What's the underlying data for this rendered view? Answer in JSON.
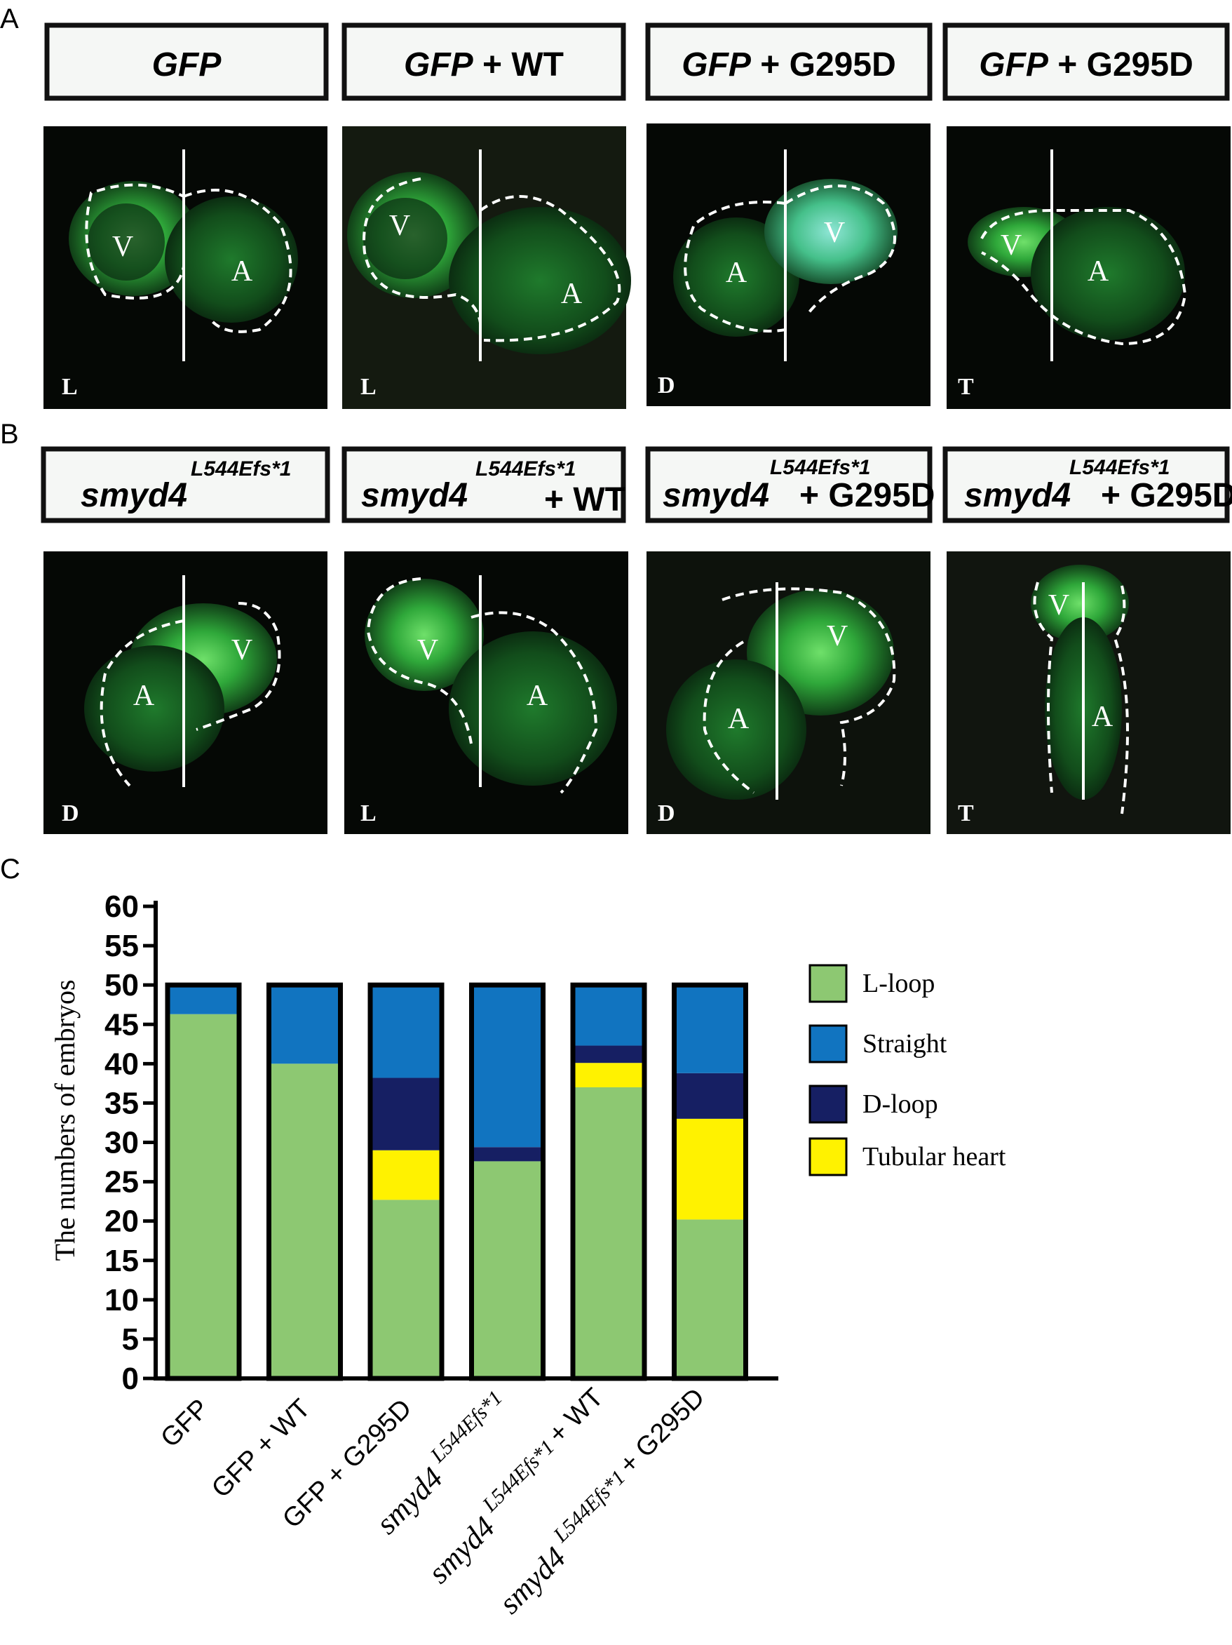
{
  "panel_letters": {
    "a": "A",
    "b": "B",
    "c": "C"
  },
  "row_a": {
    "headers": [
      {
        "main": "GFP",
        "suffix": ""
      },
      {
        "main": "GFP",
        "suffix": " + WT"
      },
      {
        "main": "GFP",
        "suffix": " + G295D"
      },
      {
        "main": "GFP",
        "suffix": " + G295D"
      }
    ],
    "images": [
      {
        "corner": "L",
        "chambers": [
          "V",
          "A"
        ]
      },
      {
        "corner": "L",
        "chambers": [
          "V",
          "A"
        ]
      },
      {
        "corner": "D",
        "chambers": [
          "A",
          "V"
        ]
      },
      {
        "corner": "T",
        "chambers": [
          "V",
          "A"
        ]
      }
    ]
  },
  "row_b": {
    "headers": [
      {
        "main": "smyd4",
        "sup": "L544Efs*1",
        "suffix": ""
      },
      {
        "main": "smyd4",
        "sup": "L544Efs*1",
        "suffix": "+ WT"
      },
      {
        "main": "smyd4",
        "sup": "L544Efs*1",
        "suffix": "+ G295D"
      },
      {
        "main": "smyd4",
        "sup": "L544Efs*1",
        "suffix": "+ G295D"
      }
    ],
    "images": [
      {
        "corner": "D",
        "chambers": [
          "A",
          "V"
        ]
      },
      {
        "corner": "L",
        "chambers": [
          "V",
          "A"
        ]
      },
      {
        "corner": "D",
        "chambers": [
          "A",
          "V"
        ]
      },
      {
        "corner": "T",
        "chambers": [
          "V",
          "A"
        ]
      }
    ]
  },
  "chart_data": {
    "type": "bar",
    "stacked": true,
    "ylabel": "The numbers of embryos",
    "ylim": [
      0,
      60
    ],
    "yticks": [
      "0",
      "5",
      "10",
      "15",
      "20",
      "25",
      "30",
      "35",
      "40",
      "45",
      "50",
      "55",
      "60"
    ],
    "categories": [
      {
        "main": "GFP",
        "sup": "",
        "suffix": ""
      },
      {
        "main": "GFP",
        "sup": "",
        "suffix": "+ WT"
      },
      {
        "main": "GFP",
        "sup": "",
        "suffix": "+ G295D"
      },
      {
        "main": "smyd4",
        "sup": "L544Efs*1",
        "suffix": ""
      },
      {
        "main": "smyd4",
        "sup": "L544Efs*1",
        "suffix": "+ WT"
      },
      {
        "main": "smyd4",
        "sup": "L544Efs*1",
        "suffix": "+ G295D"
      }
    ],
    "series": [
      {
        "name": "L-loop",
        "color": "#8dc872",
        "values": [
          46.3,
          40.0,
          22.7,
          27.6,
          37.0,
          20.2
        ]
      },
      {
        "name": "Tubular heart",
        "color": "#fff200",
        "values": [
          0,
          0,
          6.3,
          0,
          3.1,
          12.8
        ]
      },
      {
        "name": "D-loop",
        "color": "#161f63",
        "values": [
          0,
          0,
          9.2,
          1.8,
          2.2,
          5.8
        ]
      },
      {
        "name": "Straight",
        "color": "#1174c0",
        "values": [
          3.7,
          10.0,
          11.8,
          20.6,
          7.7,
          11.2
        ]
      }
    ],
    "legend_order": [
      "L-loop",
      "Straight",
      "D-loop",
      "Tubular heart"
    ],
    "legend_position": "right"
  }
}
